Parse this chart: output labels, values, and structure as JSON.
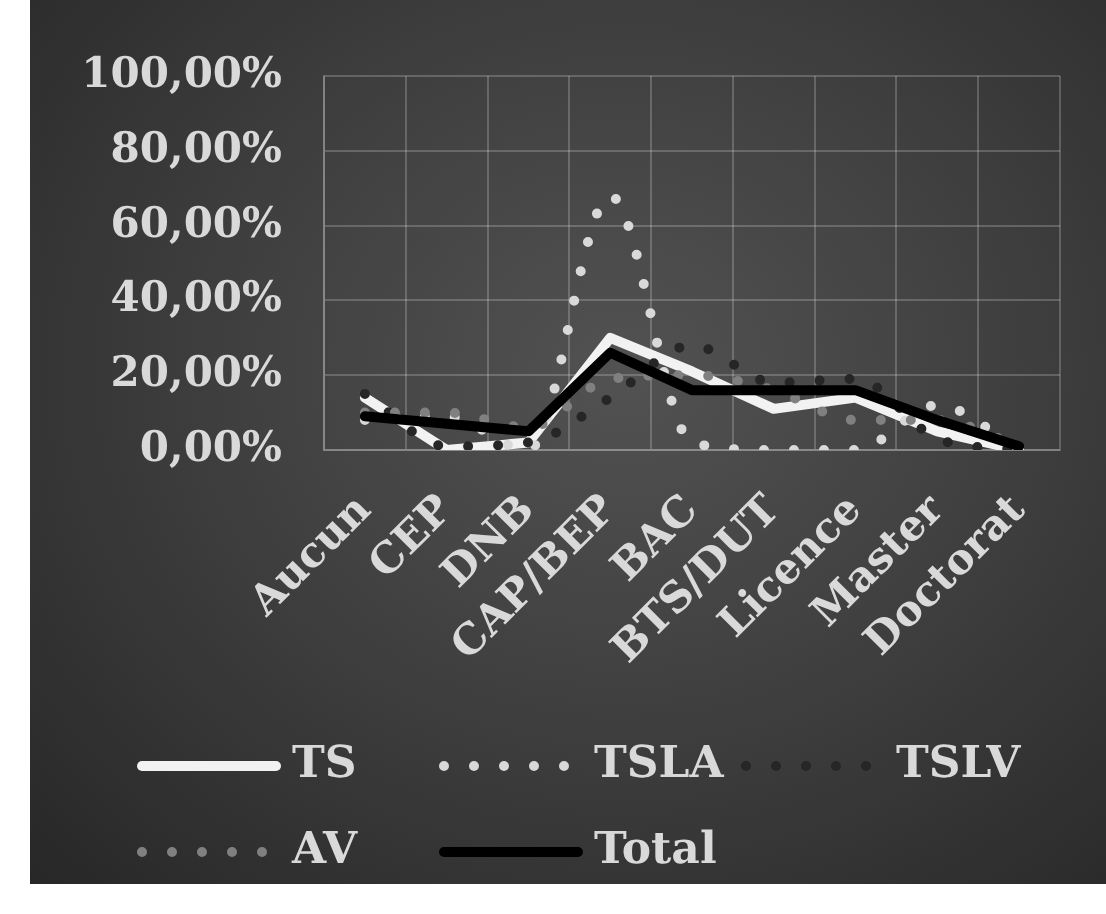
{
  "chart_data": {
    "type": "line",
    "categories": [
      "Aucun",
      "CEP",
      "DNB",
      "CAP/BEP",
      "BAC",
      "BTS/DUT",
      "Licence",
      "Master",
      "Doctorat"
    ],
    "series": [
      {
        "name": "TS",
        "color": "#f2f2f2",
        "line_style": "solid",
        "values": [
          14,
          0,
          2,
          30,
          21,
          11,
          14,
          5,
          0
        ]
      },
      {
        "name": "TSLA",
        "color": "#d9d9d9",
        "line_style": "dotted",
        "values": [
          8,
          9,
          0,
          68,
          2,
          0,
          0,
          12,
          0
        ]
      },
      {
        "name": "TSLV",
        "color": "#262626",
        "line_style": "dotted",
        "values": [
          15,
          1,
          2,
          14,
          28,
          18,
          19,
          3,
          0
        ]
      },
      {
        "name": "AV",
        "color": "#808080",
        "line_style": "dotted",
        "values": [
          10,
          10,
          6,
          19,
          20,
          16,
          8,
          8,
          1
        ]
      },
      {
        "name": "Total",
        "color": "#000000",
        "line_style": "solid",
        "values": [
          9,
          7,
          5,
          26,
          16,
          16,
          16,
          8,
          1
        ]
      }
    ],
    "ylim": [
      0,
      100
    ],
    "yticks": [
      {
        "value": 0,
        "label": "0,00%"
      },
      {
        "value": 20,
        "label": "20,00%"
      },
      {
        "value": 40,
        "label": "40,00%"
      },
      {
        "value": 60,
        "label": "60,00%"
      },
      {
        "value": 80,
        "label": "80,00%"
      },
      {
        "value": 100,
        "label": "100,00%"
      }
    ],
    "grid": true,
    "legend": "bottom",
    "marker": "none"
  }
}
